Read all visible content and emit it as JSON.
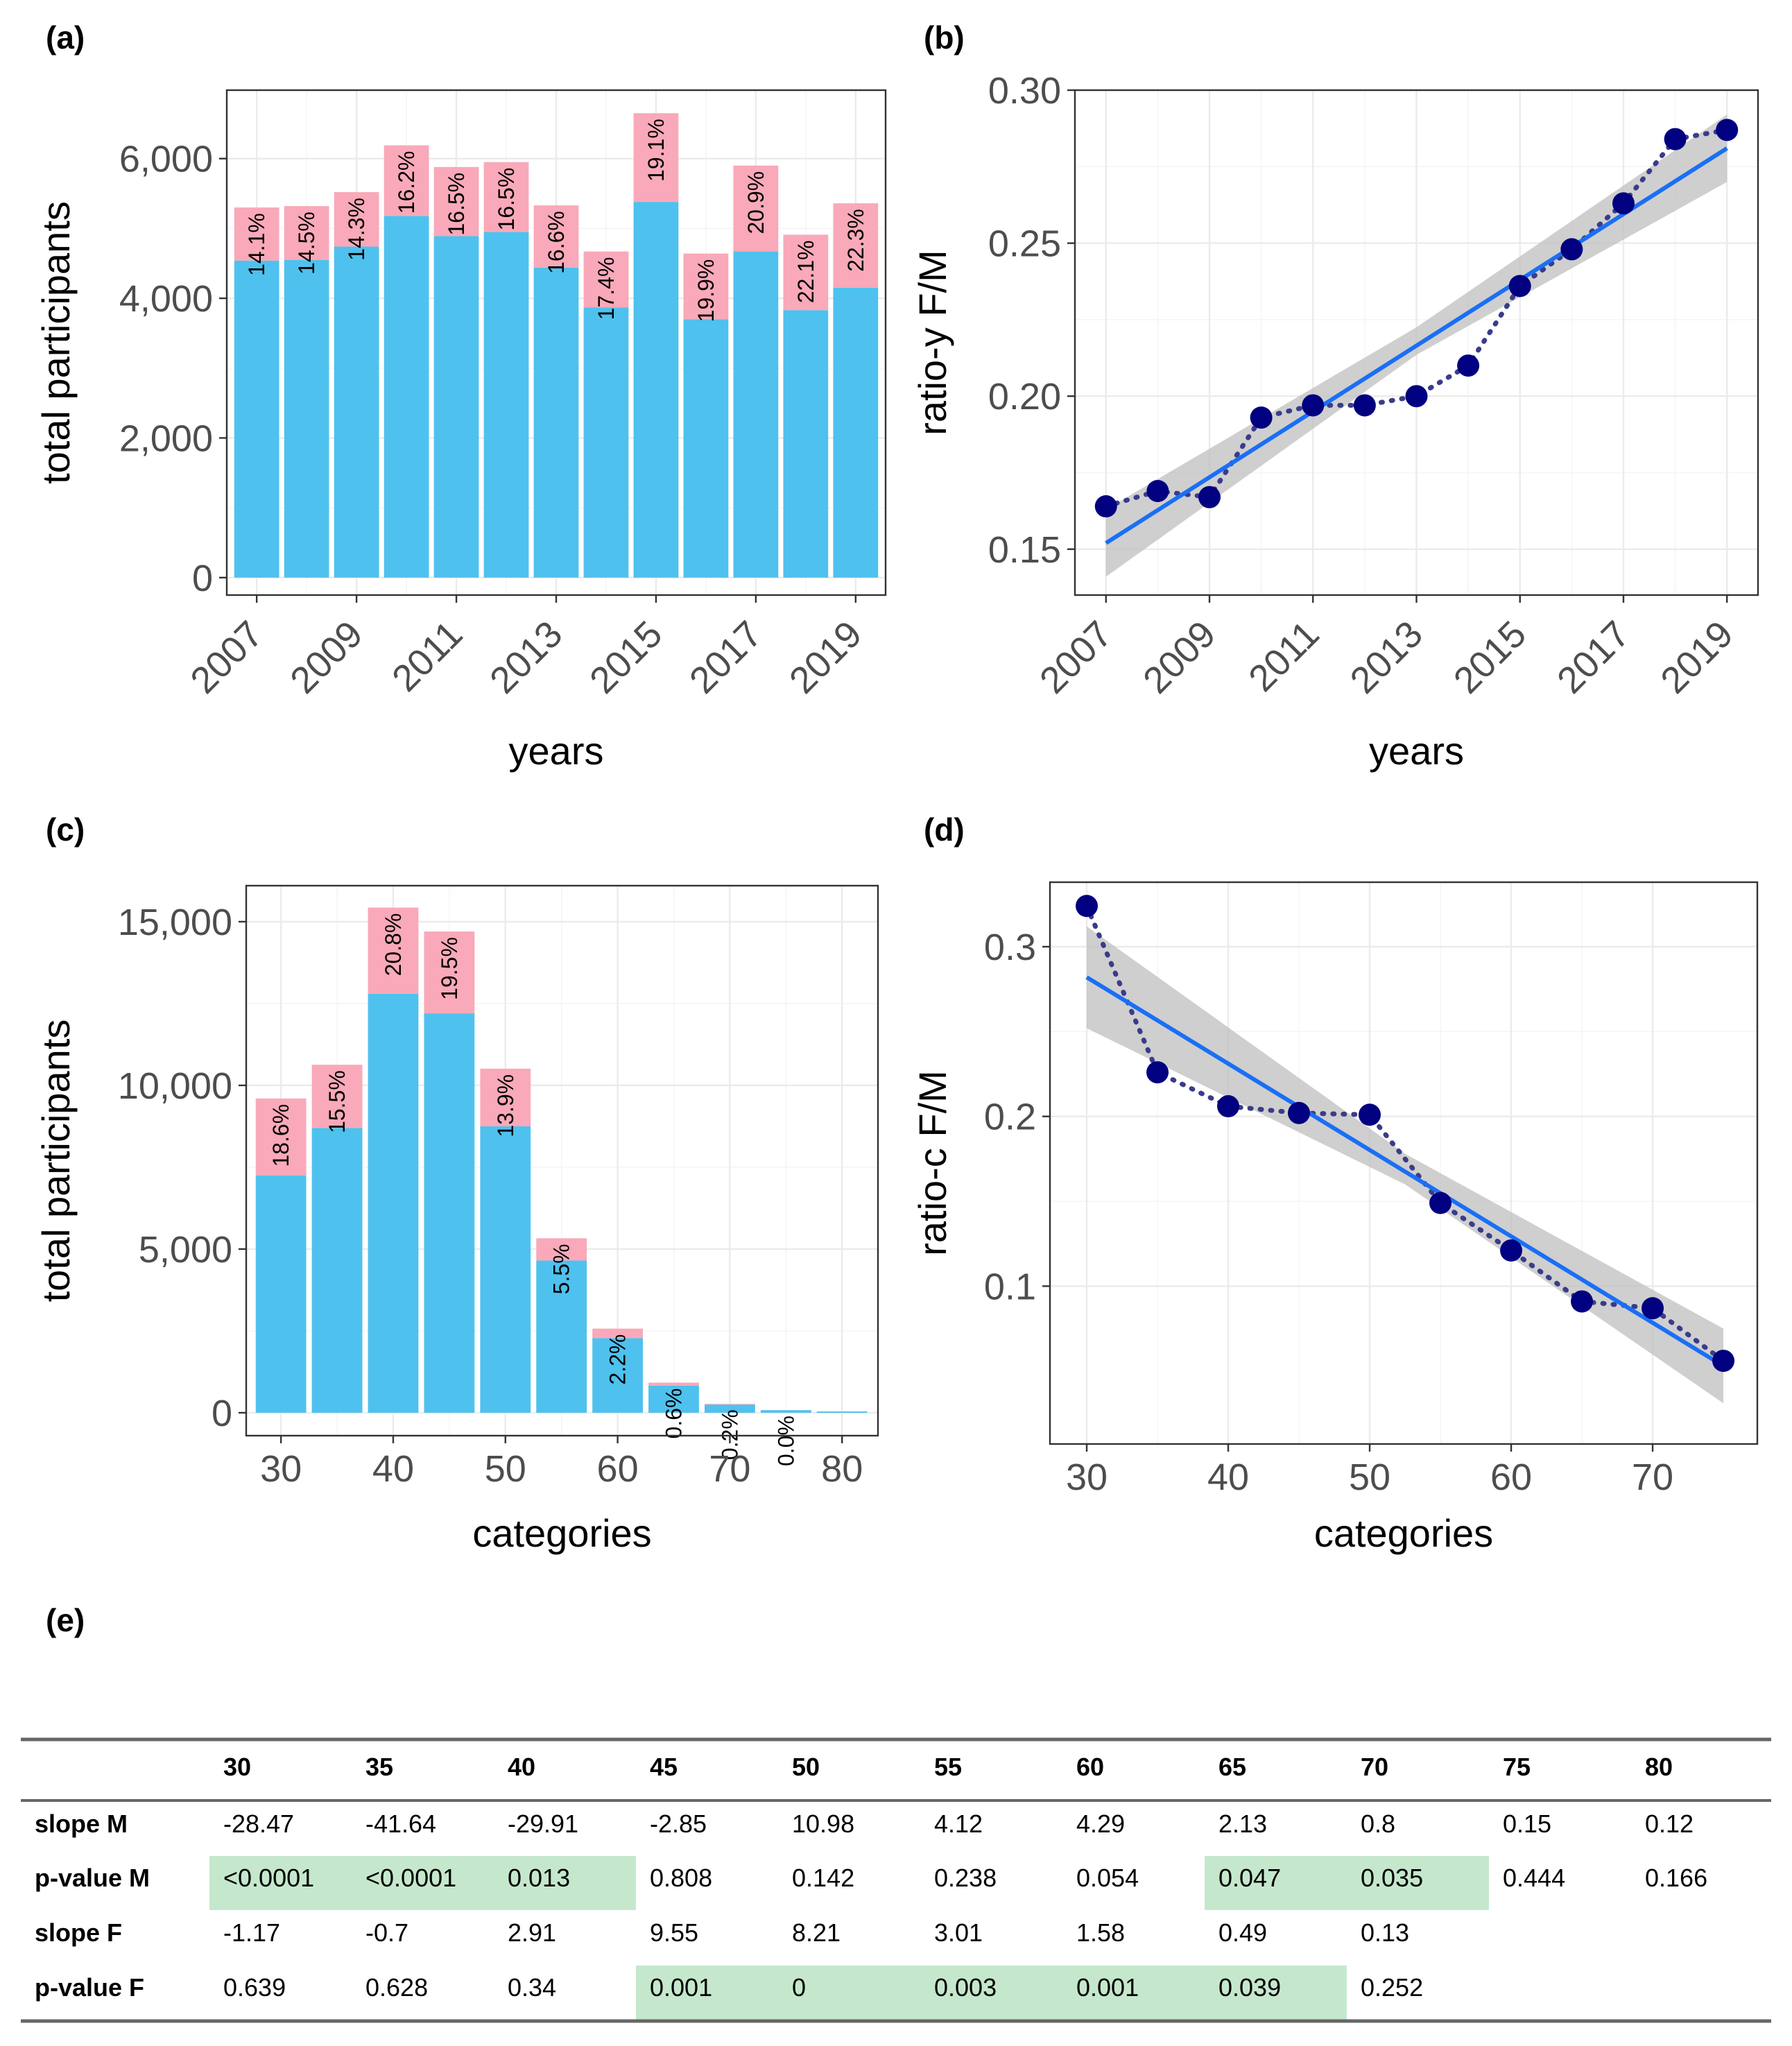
{
  "chart_data": [
    {
      "id": "a",
      "panel_label": "(a)",
      "type": "bar",
      "stacked": true,
      "x": [
        2007,
        2008,
        2009,
        2010,
        2011,
        2012,
        2013,
        2014,
        2015,
        2016,
        2017,
        2018,
        2019
      ],
      "series": [
        {
          "name": "male",
          "color": "#4fc1ee",
          "values": [
            4540,
            4550,
            4740,
            5180,
            4890,
            4950,
            4440,
            3870,
            5380,
            3700,
            4670,
            3830,
            4150
          ]
        },
        {
          "name": "female",
          "color": "#f9a9b9",
          "values": [
            760,
            770,
            780,
            1010,
            990,
            1000,
            890,
            800,
            1270,
            940,
            1230,
            1080,
            1210
          ]
        }
      ],
      "bar_labels": [
        "14.1%",
        "14.5%",
        "14.3%",
        "16.2%",
        "16.5%",
        "16.5%",
        "16.6%",
        "17.4%",
        "19.1%",
        "19.9%",
        "20.9%",
        "22.1%",
        "22.3%"
      ],
      "xticks": [
        2007,
        2009,
        2011,
        2013,
        2015,
        2017,
        2019
      ],
      "xtick_labels": [
        "2007",
        "2009",
        "2011",
        "2013",
        "2015",
        "2017",
        "2019"
      ],
      "yticks": [
        0,
        2000,
        4000,
        6000
      ],
      "ytick_labels": [
        "0",
        "2,000",
        "4,000",
        "6,000"
      ],
      "xlim": [
        2006.4,
        2019.6
      ],
      "ylim": [
        -250,
        6980
      ],
      "xlabel": "years",
      "ylabel": "total participants"
    },
    {
      "id": "b",
      "panel_label": "(b)",
      "type": "scatter",
      "x": [
        2007,
        2008,
        2009,
        2010,
        2011,
        2012,
        2013,
        2014,
        2015,
        2016,
        2017,
        2018,
        2019
      ],
      "y": [
        0.164,
        0.169,
        0.167,
        0.193,
        0.197,
        0.197,
        0.2,
        0.21,
        0.236,
        0.248,
        0.263,
        0.284,
        0.287
      ],
      "point_color": "#000080",
      "dotted_line_color": "#3b3b8c",
      "fit": {
        "x0": 2007,
        "y0": 0.152,
        "x1": 2019,
        "y1": 0.281,
        "ci_lower": [
          0.141,
          0.27
        ],
        "ci_upper": [
          0.163,
          0.292
        ],
        "ci_mid": [
          0.2135,
          0.2225
        ],
        "color": "#1a6ff5",
        "ci_color": "#bfbfbf"
      },
      "xticks": [
        2007,
        2009,
        2011,
        2013,
        2015,
        2017,
        2019
      ],
      "xtick_labels": [
        "2007",
        "2009",
        "2011",
        "2013",
        "2015",
        "2017",
        "2019"
      ],
      "yticks": [
        0.15,
        0.2,
        0.25,
        0.3
      ],
      "ytick_labels": [
        "0.15",
        "0.20",
        "0.25",
        "0.30"
      ],
      "xlim": [
        2006.4,
        2019.6
      ],
      "ylim": [
        0.135,
        0.3
      ],
      "xlabel": "years",
      "ylabel": "ratio-y F/M"
    },
    {
      "id": "c",
      "panel_label": "(c)",
      "type": "bar",
      "stacked": true,
      "x": [
        30,
        35,
        40,
        45,
        50,
        55,
        60,
        65,
        70,
        75,
        80
      ],
      "series": [
        {
          "name": "male",
          "color": "#4fc1ee",
          "values": [
            7250,
            8700,
            12800,
            12200,
            8750,
            4650,
            2280,
            830,
            250,
            80,
            40
          ]
        },
        {
          "name": "female",
          "color": "#f9a9b9",
          "values": [
            2350,
            1930,
            2630,
            2500,
            1760,
            680,
            290,
            90,
            20,
            2,
            0
          ]
        }
      ],
      "bar_labels": [
        "18.6%",
        "15.5%",
        "20.8%",
        "19.5%",
        "13.9%",
        "5.5%",
        "2.2%",
        "0.6%",
        "0.2%",
        "0.0%",
        ""
      ],
      "xticks": [
        30,
        40,
        50,
        60,
        70,
        80
      ],
      "xtick_labels": [
        "30",
        "40",
        "50",
        "60",
        "70",
        "80"
      ],
      "yticks": [
        0,
        5000,
        10000,
        15000
      ],
      "ytick_labels": [
        "0",
        "5,000",
        "10,000",
        "15,000"
      ],
      "xlim": [
        26.9,
        83.2
      ],
      "ylim": [
        -700,
        16100
      ],
      "xlabel": "categories",
      "ylabel": "total participants"
    },
    {
      "id": "d",
      "panel_label": "(d)",
      "type": "scatter",
      "x": [
        30,
        35,
        40,
        45,
        50,
        55,
        60,
        65,
        70,
        75
      ],
      "y": [
        0.324,
        0.226,
        0.206,
        0.202,
        0.201,
        0.149,
        0.121,
        0.091,
        0.087,
        0.056
      ],
      "point_color": "#000080",
      "dotted_line_color": "#3b3b8c",
      "fit": {
        "x0": 30,
        "y0": 0.282,
        "x1": 75,
        "y1": 0.053,
        "ci_lower": [
          0.252,
          0.031
        ],
        "ci_upper": [
          0.312,
          0.075
        ],
        "ci_mid": [
          0.16,
          0.178
        ],
        "color": "#1a6ff5",
        "ci_color": "#bfbfbf"
      },
      "xticks": [
        30,
        40,
        50,
        60,
        70
      ],
      "xtick_labels": [
        "30",
        "40",
        "50",
        "60",
        "70"
      ],
      "yticks": [
        0.1,
        0.2,
        0.3
      ],
      "ytick_labels": [
        "0.1",
        "0.2",
        "0.3"
      ],
      "xlim": [
        27.4,
        77.4
      ],
      "ylim": [
        0.007,
        0.338
      ],
      "xlabel": "categories",
      "ylabel": "ratio-c F/M"
    },
    {
      "id": "e",
      "panel_label": "(e)",
      "type": "table",
      "columns": [
        "",
        "30",
        "35",
        "40",
        "45",
        "50",
        "55",
        "60",
        "65",
        "70",
        "75",
        "80"
      ],
      "rows": [
        {
          "label": "slope M",
          "cells": [
            "-28.47",
            "-41.64",
            "-29.91",
            "-2.85",
            "10.98",
            "4.12",
            "4.29",
            "2.13",
            "0.8",
            "0.15",
            "0.12"
          ],
          "highlight": [
            false,
            false,
            false,
            false,
            false,
            false,
            false,
            false,
            false,
            false,
            false
          ]
        },
        {
          "label": "p-value M",
          "cells": [
            "<0.0001",
            "<0.0001",
            "0.013",
            "0.808",
            "0.142",
            "0.238",
            "0.054",
            "0.047",
            "0.035",
            "0.444",
            "0.166"
          ],
          "highlight": [
            true,
            true,
            true,
            false,
            false,
            false,
            false,
            true,
            true,
            false,
            false
          ]
        },
        {
          "label": "slope F",
          "cells": [
            "-1.17",
            "-0.7",
            "2.91",
            "9.55",
            "8.21",
            "3.01",
            "1.58",
            "0.49",
            "0.13",
            "",
            ""
          ],
          "highlight": [
            false,
            false,
            false,
            false,
            false,
            false,
            false,
            false,
            false,
            false,
            false
          ]
        },
        {
          "label": "p-value F",
          "cells": [
            "0.639",
            "0.628",
            "0.34",
            "0.001",
            "0",
            "0.003",
            "0.001",
            "0.039",
            "0.252",
            "",
            ""
          ],
          "highlight": [
            false,
            false,
            false,
            true,
            true,
            true,
            true,
            true,
            false,
            false,
            false
          ]
        }
      ],
      "highlight_color": "#c5e8cd"
    }
  ]
}
